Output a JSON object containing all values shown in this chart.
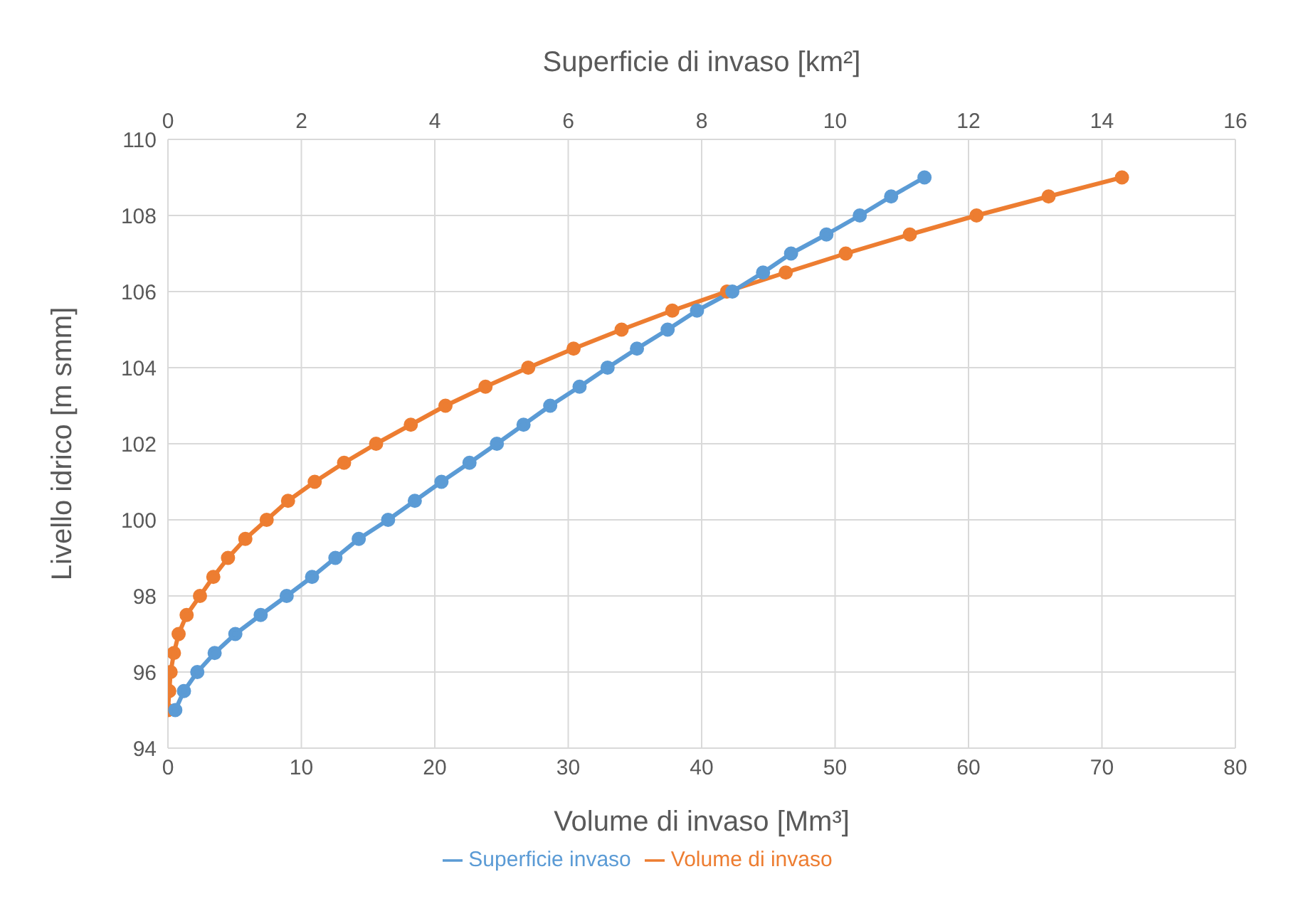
{
  "chart_data": {
    "type": "line",
    "xlabel": "Volume di invaso [Mm³]",
    "x2label": "Superficie di invaso [km²]",
    "ylabel": "Livello idrico [m smm]",
    "xlim": [
      0,
      80
    ],
    "xticks": [
      0,
      10,
      20,
      30,
      40,
      50,
      60,
      70,
      80
    ],
    "x2lim": [
      0,
      16
    ],
    "x2ticks": [
      0,
      2,
      4,
      6,
      8,
      10,
      12,
      14,
      16
    ],
    "ylim": [
      94,
      110
    ],
    "yticks": [
      94,
      96,
      98,
      100,
      102,
      104,
      106,
      108,
      110
    ],
    "grid": true,
    "legend": "bottom",
    "marker": "circle",
    "line_style": "solid",
    "series": [
      {
        "name": "Volume di invaso",
        "color": "#ed7d31",
        "x": [
          0,
          0.1,
          0.2,
          0.45,
          0.8,
          1.4,
          2.4,
          3.4,
          4.5,
          5.8,
          7.4,
          9.0,
          11.0,
          13.2,
          15.6,
          18.2,
          20.8,
          23.8,
          27.0,
          30.4,
          34.0,
          37.8,
          41.9,
          46.3,
          50.8,
          55.6,
          60.6,
          66.0,
          71.5
        ],
        "values": [
          95,
          95.5,
          96,
          96.5,
          97,
          97.5,
          98,
          98.5,
          99,
          99.5,
          100,
          100.5,
          101,
          101.5,
          102,
          102.5,
          103,
          103.5,
          104,
          104.5,
          105,
          105.5,
          106,
          106.5,
          107,
          107.5,
          108,
          108.5,
          109
        ]
      },
      {
        "name": "Superficie invaso",
        "color": "#5b9bd5",
        "axis": "x2",
        "x": [
          0.11,
          0.24,
          0.44,
          0.7,
          1.01,
          1.39,
          1.78,
          2.16,
          2.51,
          2.86,
          3.3,
          3.7,
          4.1,
          4.52,
          4.93,
          5.33,
          5.73,
          6.17,
          6.59,
          7.03,
          7.49,
          7.93,
          8.46,
          8.92,
          9.34,
          9.87,
          10.37,
          10.84,
          11.34
        ],
        "values": [
          95,
          95.5,
          96,
          96.5,
          97,
          97.5,
          98,
          98.5,
          99,
          99.5,
          100,
          100.5,
          101,
          101.5,
          102,
          102.5,
          103,
          103.5,
          104,
          104.5,
          105,
          105.5,
          106,
          106.5,
          107,
          107.5,
          108,
          108.5,
          109
        ]
      }
    ]
  }
}
